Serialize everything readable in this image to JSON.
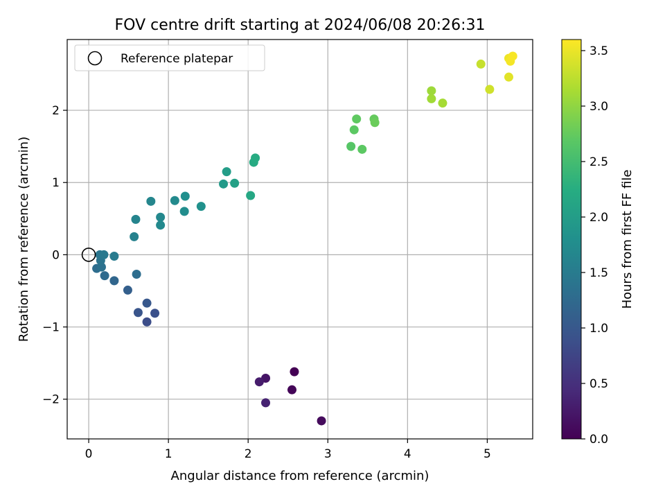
{
  "chart_data": {
    "type": "scatter",
    "title": "FOV centre drift starting at 2024/06/08 20:26:31",
    "xlabel": "Angular distance from reference (arcmin)",
    "ylabel": "Rotation from reference (arcmin)",
    "xlim": [
      -0.27,
      5.57
    ],
    "ylim": [
      -2.55,
      2.98
    ],
    "xticks": [
      0,
      1,
      2,
      3,
      4,
      5
    ],
    "xtick_labels": [
      "0",
      "1",
      "2",
      "3",
      "4",
      "5"
    ],
    "yticks": [
      -2,
      -1,
      0,
      1,
      2
    ],
    "ytick_labels": [
      "−2",
      "−1",
      "0",
      "1",
      "2"
    ],
    "grid": true,
    "legend": {
      "location": "upper-left",
      "label": "Reference platepar"
    },
    "reference_point": {
      "x": 0,
      "y": 0
    },
    "colorbar": {
      "label": "Hours from first FF file",
      "colormap": "viridis",
      "range": [
        0,
        3.6
      ],
      "ticks": [
        0.0,
        0.5,
        1.0,
        1.5,
        2.0,
        2.5,
        3.0,
        3.5
      ],
      "tick_labels": [
        "0.0",
        "0.5",
        "1.0",
        "1.5",
        "2.0",
        "2.5",
        "3.0",
        "3.5"
      ]
    },
    "points": [
      {
        "x": 2.58,
        "y": -1.62,
        "c": 0.0
      },
      {
        "x": 2.55,
        "y": -1.87,
        "c": 0.05
      },
      {
        "x": 2.92,
        "y": -2.3,
        "c": 0.1
      },
      {
        "x": 2.22,
        "y": -1.71,
        "c": 0.2
      },
      {
        "x": 2.14,
        "y": -1.76,
        "c": 0.28
      },
      {
        "x": 2.22,
        "y": -2.05,
        "c": 0.35
      },
      {
        "x": 0.73,
        "y": -0.93,
        "c": 0.85
      },
      {
        "x": 0.83,
        "y": -0.81,
        "c": 0.9
      },
      {
        "x": 0.62,
        "y": -0.8,
        "c": 0.95
      },
      {
        "x": 0.73,
        "y": -0.67,
        "c": 1.0
      },
      {
        "x": 0.49,
        "y": -0.49,
        "c": 1.1
      },
      {
        "x": 0.32,
        "y": -0.36,
        "c": 1.2
      },
      {
        "x": 0.2,
        "y": -0.29,
        "c": 1.25
      },
      {
        "x": 0.1,
        "y": -0.19,
        "c": 1.3
      },
      {
        "x": 0.16,
        "y": -0.17,
        "c": 1.35
      },
      {
        "x": 0.6,
        "y": -0.27,
        "c": 1.3
      },
      {
        "x": 0.15,
        "y": -0.08,
        "c": 1.4
      },
      {
        "x": 0.14,
        "y": 0.0,
        "c": 1.42
      },
      {
        "x": 0.19,
        "y": 0.0,
        "c": 1.45
      },
      {
        "x": 0.32,
        "y": -0.02,
        "c": 1.5
      },
      {
        "x": 0.57,
        "y": 0.25,
        "c": 1.58
      },
      {
        "x": 0.59,
        "y": 0.49,
        "c": 1.62
      },
      {
        "x": 0.78,
        "y": 0.74,
        "c": 1.65
      },
      {
        "x": 0.9,
        "y": 0.52,
        "c": 1.68
      },
      {
        "x": 0.9,
        "y": 0.41,
        "c": 1.7
      },
      {
        "x": 1.08,
        "y": 0.75,
        "c": 1.72
      },
      {
        "x": 1.2,
        "y": 0.6,
        "c": 1.75
      },
      {
        "x": 1.21,
        "y": 0.81,
        "c": 1.78
      },
      {
        "x": 1.41,
        "y": 0.67,
        "c": 1.82
      },
      {
        "x": 1.69,
        "y": 0.98,
        "c": 1.95
      },
      {
        "x": 1.73,
        "y": 1.15,
        "c": 2.0
      },
      {
        "x": 1.83,
        "y": 0.99,
        "c": 2.05
      },
      {
        "x": 2.03,
        "y": 0.82,
        "c": 2.15
      },
      {
        "x": 2.07,
        "y": 1.28,
        "c": 2.2
      },
      {
        "x": 2.09,
        "y": 1.34,
        "c": 2.22
      },
      {
        "x": 3.29,
        "y": 1.5,
        "c": 2.65
      },
      {
        "x": 3.33,
        "y": 1.73,
        "c": 2.7
      },
      {
        "x": 3.36,
        "y": 1.88,
        "c": 2.72
      },
      {
        "x": 3.43,
        "y": 1.46,
        "c": 2.7
      },
      {
        "x": 3.58,
        "y": 1.88,
        "c": 2.75
      },
      {
        "x": 3.59,
        "y": 1.83,
        "c": 2.78
      },
      {
        "x": 4.3,
        "y": 2.27,
        "c": 3.08
      },
      {
        "x": 4.3,
        "y": 2.16,
        "c": 3.1
      },
      {
        "x": 4.44,
        "y": 2.1,
        "c": 3.12
      },
      {
        "x": 4.92,
        "y": 2.64,
        "c": 3.3
      },
      {
        "x": 5.03,
        "y": 2.29,
        "c": 3.35
      },
      {
        "x": 5.27,
        "y": 2.46,
        "c": 3.45
      },
      {
        "x": 5.27,
        "y": 2.72,
        "c": 3.52
      },
      {
        "x": 5.29,
        "y": 2.68,
        "c": 3.55
      },
      {
        "x": 5.32,
        "y": 2.75,
        "c": 3.57
      }
    ]
  }
}
